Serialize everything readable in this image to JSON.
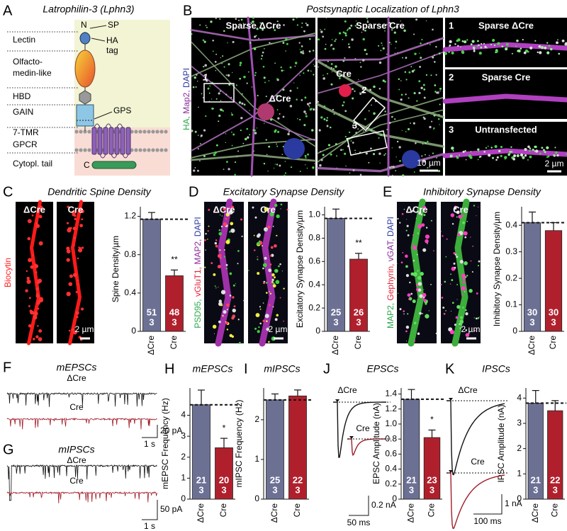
{
  "panel_a": {
    "letter": "A",
    "title": "Latrophilin-3 (Lphn3)",
    "domains": [
      "Lectin",
      "Olfacto-",
      "medin-like",
      "HBD",
      "GAIN",
      "7-TMR",
      "GPCR",
      "Cytopl. tail"
    ],
    "annotations": [
      "N",
      "SP",
      "HA",
      "tag",
      "GPS",
      "C"
    ]
  },
  "panel_b": {
    "letter": "B",
    "title": "Postsynaptic Localization of Lphn3",
    "stains": [
      "HA,",
      "Map2,",
      "DAPI"
    ],
    "images": [
      "Sparse ΔCre",
      "Sparse Cre"
    ],
    "cell_labels": [
      "ΔCre",
      "Cre"
    ],
    "box_labels": [
      "1",
      "2",
      "3"
    ],
    "insets": [
      {
        "number": "1",
        "label": "Sparse ΔCre"
      },
      {
        "number": "2",
        "label": "Sparse Cre"
      },
      {
        "number": "3",
        "label": "Untransfected"
      }
    ],
    "scale_bars": [
      "10 µm",
      "2 µm"
    ]
  },
  "image_panels": [
    {
      "letter": "C",
      "title": "Dendritic Spine Density",
      "image_labels": [
        "ΔCre",
        "Cre"
      ],
      "stains": [
        "Biocytin"
      ],
      "scale_bar": "2 µm"
    },
    {
      "letter": "D",
      "title": "Excitatory Synapse Density",
      "image_labels": [
        "ΔCre",
        "Cre"
      ],
      "stains": [
        "PSD95,",
        "vGluT1,",
        "MAP2,",
        "DAPI"
      ],
      "scale_bar": "2 µm"
    },
    {
      "letter": "E",
      "title": "Inhibitory Synapse Density",
      "image_labels": [
        "ΔCre",
        "Cre"
      ],
      "stains": [
        "MAP2,",
        "Gephyrin,",
        "vGAT,",
        "DAPI"
      ],
      "scale_bar": "2 µm"
    }
  ],
  "trace_panels": [
    {
      "letter": "F",
      "title": "mEPSCs",
      "labels": [
        "ΔCre",
        "Cre"
      ],
      "scale_bars": [
        "20 pA",
        "1 s"
      ]
    },
    {
      "letter": "G",
      "title": "mIPSCs",
      "labels": [
        "ΔCre",
        "Cre"
      ],
      "scale_bars": [
        "50 pA",
        "1 s"
      ]
    }
  ],
  "charts": [
    {
      "type": "bar",
      "y_label": "Spine Density/µm",
      "categories": [
        "ΔCre",
        "Cre"
      ],
      "values": [
        1.17,
        0.58
      ],
      "errors": [
        0.07,
        0.06
      ],
      "n": [
        [
          51,
          3
        ],
        [
          48,
          3
        ]
      ],
      "significance": "**",
      "ylim": [
        0,
        1.3
      ],
      "yticks": [
        0,
        0.4,
        0.8,
        1.2
      ],
      "colors": [
        "#6c7194",
        "#b0202c"
      ]
    },
    {
      "type": "bar",
      "y_label": "Excitatory Synapse Density/µm",
      "categories": [
        "ΔCre",
        "Cre"
      ],
      "values": [
        0.97,
        0.62
      ],
      "errors": [
        0.08,
        0.05
      ],
      "n": [
        [
          25,
          3
        ],
        [
          26,
          3
        ]
      ],
      "significance": "**",
      "ylim": [
        0,
        1.07
      ],
      "yticks": [
        0,
        0.2,
        0.4,
        0.6,
        0.8,
        {
          "value": 1,
          "label": "1.0"
        }
      ],
      "colors": [
        "#6c7194",
        "#b0202c"
      ]
    },
    {
      "type": "bar",
      "y_label": "Inhibitory Synapse Density/µm",
      "categories": [
        "ΔCre",
        "Cre"
      ],
      "values": [
        0.41,
        0.38
      ],
      "errors": [
        0.04,
        0.03
      ],
      "n": [
        [
          30,
          3
        ],
        [
          30,
          3
        ]
      ],
      "ylim": [
        0,
        0.47
      ],
      "yticks": [
        0,
        0.1,
        0.2,
        0.3,
        0.4
      ],
      "colors": [
        "#6c7194",
        "#b0202c"
      ]
    },
    {
      "type": "bar",
      "letter": "H",
      "title": "mEPSCs",
      "y_label": "mEPSC Frequency (Hz)",
      "categories": [
        "ΔCre",
        "Cre"
      ],
      "values": [
        4.5,
        2.45
      ],
      "errors": [
        0.7,
        0.45
      ],
      "n": [
        [
          21,
          3
        ],
        [
          20,
          3
        ]
      ],
      "significance": "*",
      "ylim": [
        0,
        5.3
      ],
      "yticks": [
        0,
        1,
        2,
        3,
        4
      ],
      "colors": [
        "#6c7194",
        "#b0202c"
      ]
    },
    {
      "type": "bar",
      "letter": "I",
      "title": "mIPSCs",
      "y_label": "mIPSC Frequency (Hz)",
      "categories": [
        "ΔCre",
        "Cre"
      ],
      "values": [
        2.5,
        2.6
      ],
      "errors": [
        0.15,
        0.15
      ],
      "n": [
        [
          25,
          3
        ],
        [
          22,
          3
        ]
      ],
      "ylim": [
        0,
        2.8
      ],
      "yticks": [
        0,
        1,
        2
      ],
      "colors": [
        "#6c7194",
        "#b0202c"
      ]
    },
    {
      "type": "bar",
      "letter": "J",
      "title": "EPSCs",
      "y_label": "EPSC Amplitude (nA)",
      "categories": [
        "ΔCre",
        "Cre"
      ],
      "values": [
        1.33,
        0.82
      ],
      "errors": [
        0.13,
        0.1
      ],
      "n": [
        [
          21,
          3
        ],
        [
          23,
          3
        ]
      ],
      "significance": "*",
      "ylim": [
        0,
        1.48
      ],
      "yticks": [
        0,
        0.2,
        0.4,
        0.6,
        0.8,
        {
          "value": 1,
          "label": "1.0"
        },
        1.2,
        1.4
      ],
      "colors": [
        "#6c7194",
        "#b0202c"
      ],
      "traces": {
        "labels": [
          "ΔCre",
          "Cre"
        ],
        "scale_bars": [
          "0.2 nA",
          "50 ms"
        ]
      }
    },
    {
      "type": "bar",
      "letter": "K",
      "title": "IPSCs",
      "y_label": "IPSC Amplitude (nA)",
      "categories": [
        "ΔCre",
        "Cre"
      ],
      "values": [
        3.8,
        3.5
      ],
      "errors": [
        0.5,
        0.4
      ],
      "n": [
        [
          21,
          3
        ],
        [
          22,
          3
        ]
      ],
      "ylim": [
        0,
        4.4
      ],
      "yticks": [
        0,
        1,
        2,
        3,
        4
      ],
      "colors": [
        "#6c7194",
        "#b0202c"
      ],
      "traces": {
        "labels": [
          "ΔCre",
          "Cre"
        ],
        "scale_bars": [
          "1 nA",
          "100 ms"
        ]
      }
    }
  ]
}
